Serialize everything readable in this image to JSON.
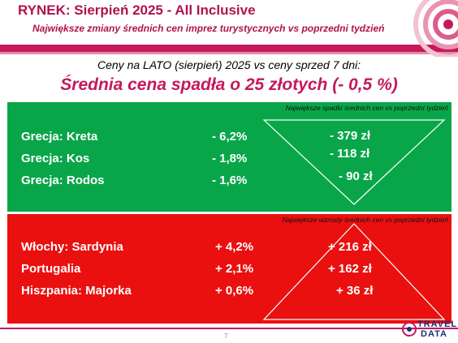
{
  "header": {
    "title": "RYNEK: Sierpień 2025 - All Inclusive",
    "subtitle": "Największe zmiany średnich cen imprez turystycznych vs poprzedni tydzień"
  },
  "summary": {
    "line1": "Ceny na LATO (sierpień) 2025 vs ceny sprzed 7 dni:",
    "line2": "Średnia cena spadła o 25 złotych (- 0,5 %)"
  },
  "decreases": {
    "caption": "Największe spadki średnich cen vs poprzedni tydzień",
    "rows": [
      {
        "destination": "Grecja: Kreta",
        "pct": "-  6,2%",
        "pln": "- 379 zł"
      },
      {
        "destination": "Grecja: Kos",
        "pct": "-  1,8%",
        "pln": "- 118 zł"
      },
      {
        "destination": "Grecja: Rodos",
        "pct": "-  1,6%",
        "pln": "- 90 zł"
      }
    ]
  },
  "increases": {
    "caption": "Największe wzrosty średnich cen vs poprzedni tydzień",
    "rows": [
      {
        "destination": "Włochy: Sardynia",
        "pct": "+ 4,2%",
        "pln": "+ 216 zł"
      },
      {
        "destination": "Portugalia",
        "pct": "+ 2,1%",
        "pln": "+ 162 zł"
      },
      {
        "destination": "Hiszpania: Majorka",
        "pct": "+ 0,6%",
        "pln": "+ 36 zł"
      }
    ]
  },
  "footer": {
    "page_number": "7",
    "logo_top": "TRAVEL",
    "logo_bottom": "DATA"
  },
  "colors": {
    "brand": "#c41a5c",
    "decrease_panel": "#09a649",
    "increase_panel": "#ea1010"
  }
}
